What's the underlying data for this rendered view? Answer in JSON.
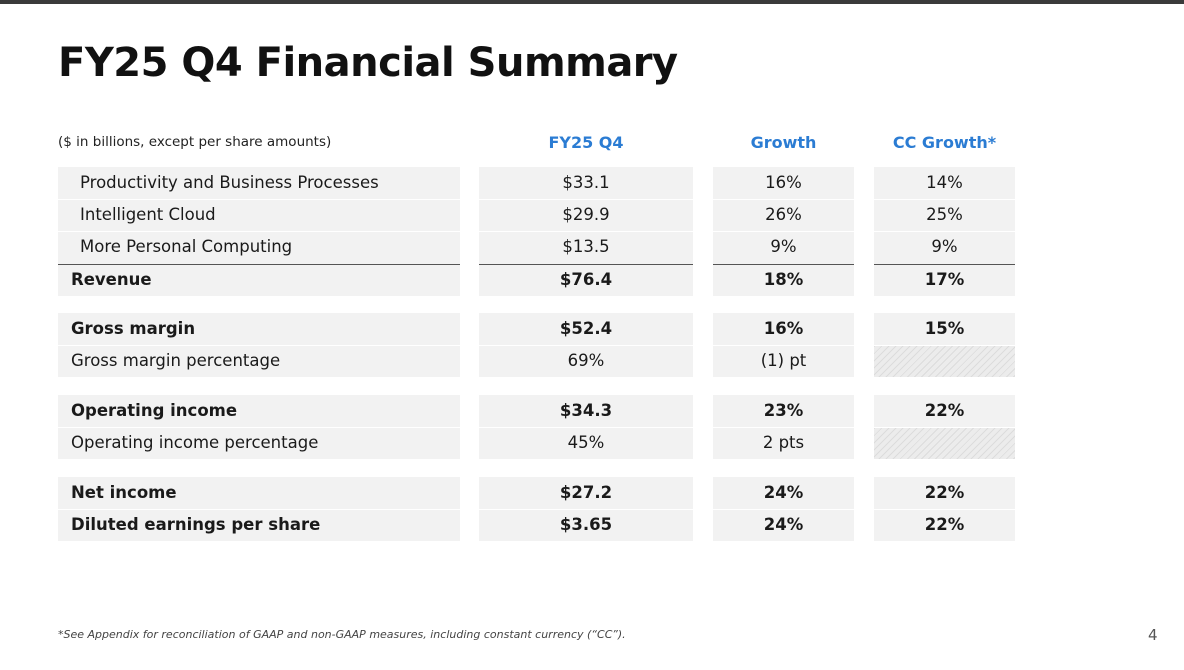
{
  "title": "FY25 Q4 Financial Summary",
  "units_note": "($ in billions, except per share amounts)",
  "columns": {
    "fy": "FY25 Q4",
    "growth": "Growth",
    "cc": "CC Growth*"
  },
  "rows": [
    {
      "label": "Productivity and Business Processes",
      "fy": "$33.1",
      "growth": "16%",
      "cc": "14%",
      "bold": false,
      "indent": true
    },
    {
      "label": "Intelligent Cloud",
      "fy": "$29.9",
      "growth": "26%",
      "cc": "25%",
      "bold": false,
      "indent": true
    },
    {
      "label": "More Personal Computing",
      "fy": "$13.5",
      "growth": "9%",
      "cc": "9%",
      "bold": false,
      "indent": true
    },
    {
      "label": "Revenue",
      "fy": "$76.4",
      "growth": "18%",
      "cc": "17%",
      "bold": true,
      "indent": false
    },
    {
      "label": "Gross margin",
      "fy": "$52.4",
      "growth": "16%",
      "cc": "15%",
      "bold": true,
      "indent": false
    },
    {
      "label": "Gross margin percentage",
      "fy": "69%",
      "growth": "(1) pt",
      "cc": null,
      "bold": false,
      "indent": false
    },
    {
      "label": "Operating income",
      "fy": "$34.3",
      "growth": "23%",
      "cc": "22%",
      "bold": true,
      "indent": false
    },
    {
      "label": "Operating income percentage",
      "fy": "45%",
      "growth": "2 pts",
      "cc": null,
      "bold": false,
      "indent": false
    },
    {
      "label": "Net income",
      "fy": "$27.2",
      "growth": "24%",
      "cc": "22%",
      "bold": true,
      "indent": false
    },
    {
      "label": "Diluted earnings per share",
      "fy": "$3.65",
      "growth": "24%",
      "cc": "22%",
      "bold": true,
      "indent": false
    }
  ],
  "footnote": "*See Appendix for reconciliation of GAAP and non-GAAP measures, including constant currency (“CC”).",
  "page_number": "4"
}
